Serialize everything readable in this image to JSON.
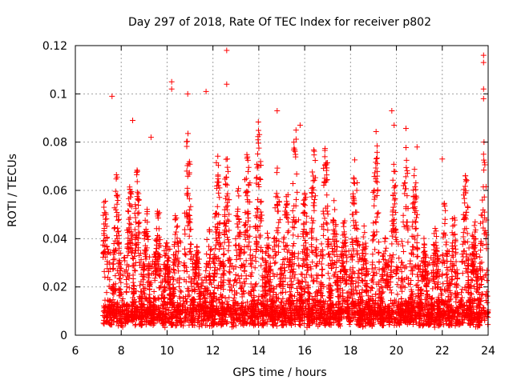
{
  "chart_data": {
    "type": "scatter",
    "title": "Day 297 of 2018, Rate Of TEC Index for receiver p802",
    "xlabel": "GPS time / hours",
    "ylabel": "ROTI / TECUs",
    "xlim": [
      6,
      24
    ],
    "ylim": [
      0,
      0.12
    ],
    "xticks": [
      6,
      8,
      10,
      12,
      14,
      16,
      18,
      20,
      22,
      24
    ],
    "yticks": [
      0,
      0.02,
      0.04,
      0.06,
      0.08,
      0.1,
      0.12
    ],
    "ytick_labels": [
      "0",
      "0.02",
      "0.04",
      "0.06",
      "0.08",
      "0.1",
      "0.12"
    ],
    "grid": true,
    "marker": "+",
    "color": "#ff0000",
    "x_range_of_data": [
      7.2,
      24.0
    ],
    "series": [
      {
        "name": "ROTI",
        "notable_points": [
          {
            "x": 7.6,
            "y": 0.099
          },
          {
            "x": 8.5,
            "y": 0.089
          },
          {
            "x": 9.3,
            "y": 0.082
          },
          {
            "x": 10.2,
            "y": 0.105
          },
          {
            "x": 10.2,
            "y": 0.102
          },
          {
            "x": 10.9,
            "y": 0.1
          },
          {
            "x": 11.7,
            "y": 0.101
          },
          {
            "x": 12.6,
            "y": 0.118
          },
          {
            "x": 12.6,
            "y": 0.104
          },
          {
            "x": 14.8,
            "y": 0.093
          },
          {
            "x": 15.8,
            "y": 0.087
          },
          {
            "x": 19.8,
            "y": 0.093
          },
          {
            "x": 19.9,
            "y": 0.087
          },
          {
            "x": 20.9,
            "y": 0.078
          },
          {
            "x": 22.0,
            "y": 0.073
          },
          {
            "x": 23.8,
            "y": 0.116
          },
          {
            "x": 23.8,
            "y": 0.113
          },
          {
            "x": 23.8,
            "y": 0.102
          },
          {
            "x": 23.8,
            "y": 0.098
          },
          {
            "x": 23.8,
            "y": 0.075
          }
        ]
      }
    ]
  }
}
